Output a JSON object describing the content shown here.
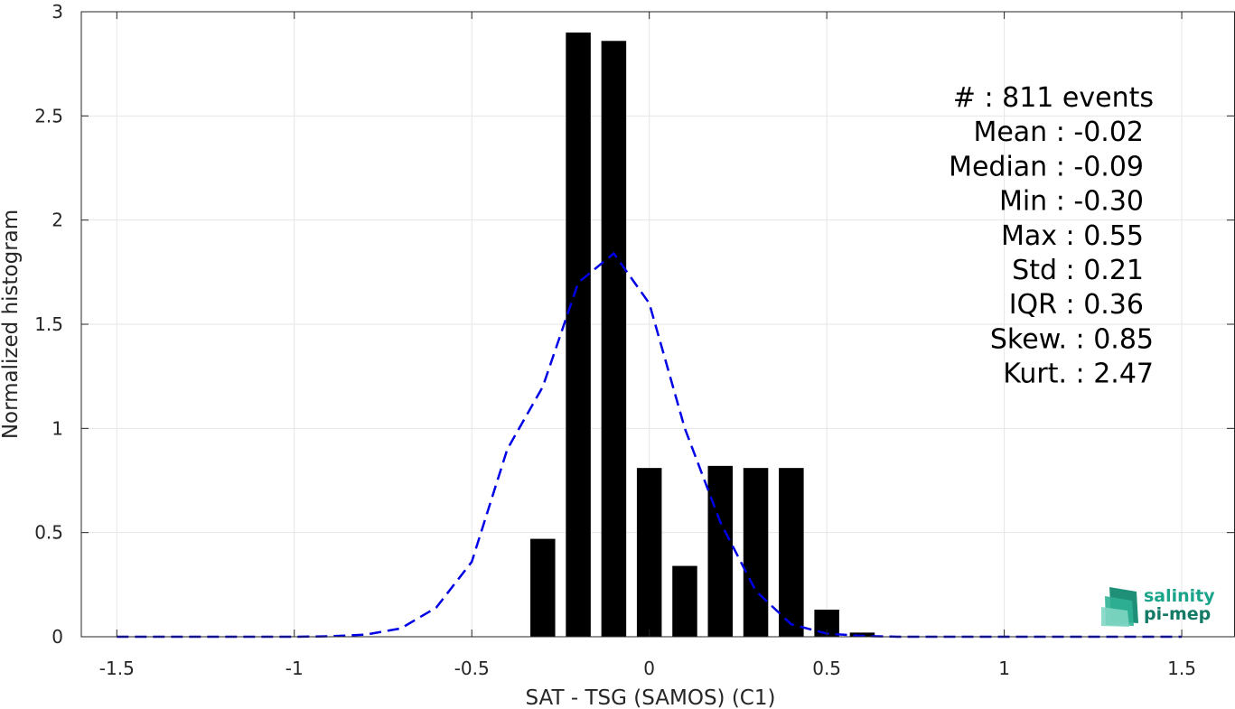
{
  "chart_data": {
    "type": "bar",
    "xlabel": "SAT - TSG (SAMOS) (C1)",
    "ylabel": "Normalized histogram",
    "xlim": [
      -1.6,
      1.65
    ],
    "ylim": [
      0,
      3
    ],
    "grid": true,
    "x_ticks": [
      "-1.5",
      "-1",
      "-0.5",
      "0",
      "0.5",
      "1",
      "1.5"
    ],
    "y_ticks": [
      "0",
      "0.5",
      "1",
      "1.5",
      "2",
      "2.5",
      "3"
    ],
    "bar_color": "#000000",
    "bar_width": 0.07,
    "bars": {
      "x": [
        -0.3,
        -0.2,
        -0.1,
        0.0,
        0.1,
        0.2,
        0.3,
        0.4,
        0.5,
        0.6
      ],
      "values": [
        0.47,
        2.9,
        2.86,
        0.81,
        0.34,
        0.82,
        0.81,
        0.81,
        0.13,
        0.02
      ]
    },
    "fit_curve": {
      "style": "dashed",
      "color": "#0000e6",
      "x": [
        -1.5,
        -1.4,
        -1.3,
        -1.2,
        -1.1,
        -1.0,
        -0.9,
        -0.8,
        -0.7,
        -0.6,
        -0.5,
        -0.4,
        -0.3,
        -0.2,
        -0.1,
        0.0,
        0.1,
        0.2,
        0.3,
        0.4,
        0.5,
        0.6,
        0.7,
        0.8,
        0.9,
        1.0,
        1.1,
        1.2,
        1.3,
        1.4,
        1.5
      ],
      "y": [
        0,
        0,
        0,
        0,
        0,
        0,
        0.002,
        0.01,
        0.04,
        0.14,
        0.36,
        0.9,
        1.2,
        1.7,
        1.84,
        1.6,
        1.0,
        0.55,
        0.22,
        0.06,
        0.015,
        0.004,
        0,
        0,
        0,
        0,
        0,
        0,
        0,
        0,
        0
      ]
    },
    "stats": [
      "#  : 811 events",
      "Mean : -0.02",
      "Median : -0.09",
      "Min : -0.30",
      "Max : 0.55",
      "Std : 0.21",
      "IQR : 0.36",
      "Skew. : 0.85",
      "Kurt. : 2.47"
    ]
  },
  "logo": {
    "line1": "salinity",
    "line2": "pi-mep",
    "color_primary": "#1aa58a",
    "color_secondary": "#137a66"
  }
}
